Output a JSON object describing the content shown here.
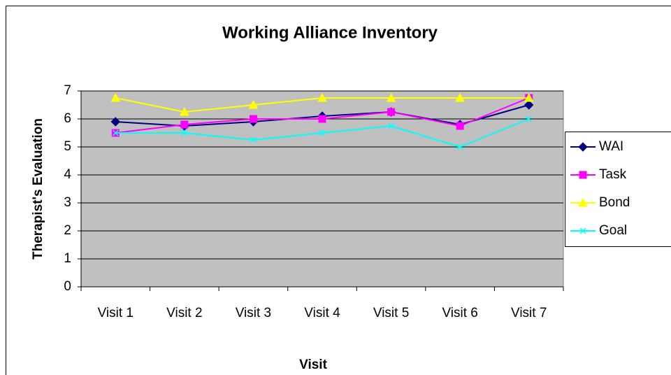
{
  "chart_data": {
    "type": "line",
    "title": "Working Alliance Inventory",
    "x_label": "Visit",
    "y_label": "Therapist's Evaluation",
    "categories": [
      "Visit 1",
      "Visit 2",
      "Visit 3",
      "Visit 4",
      "Visit 5",
      "Visit 6",
      "Visit 7"
    ],
    "series": [
      {
        "name": "WAI",
        "color": "#000080",
        "marker": "diamond",
        "values": [
          5.9,
          5.75,
          5.9,
          6.1,
          6.25,
          5.8,
          6.5
        ]
      },
      {
        "name": "Task",
        "color": "#ff00ff",
        "marker": "square",
        "values": [
          5.5,
          5.8,
          6.0,
          6.0,
          6.25,
          5.75,
          6.75
        ]
      },
      {
        "name": "Bond",
        "color": "#ffff00",
        "marker": "triangle",
        "values": [
          6.75,
          6.25,
          6.5,
          6.75,
          6.75,
          6.75,
          6.75
        ]
      },
      {
        "name": "Goal",
        "color": "#00ffff",
        "marker": "x",
        "values": [
          5.5,
          5.5,
          5.25,
          5.5,
          5.75,
          5.0,
          6.0
        ]
      }
    ],
    "ylim": [
      0,
      7
    ],
    "yticks": [
      0,
      1,
      2,
      3,
      4,
      5,
      6,
      7
    ],
    "grid": true,
    "legend": "right"
  }
}
